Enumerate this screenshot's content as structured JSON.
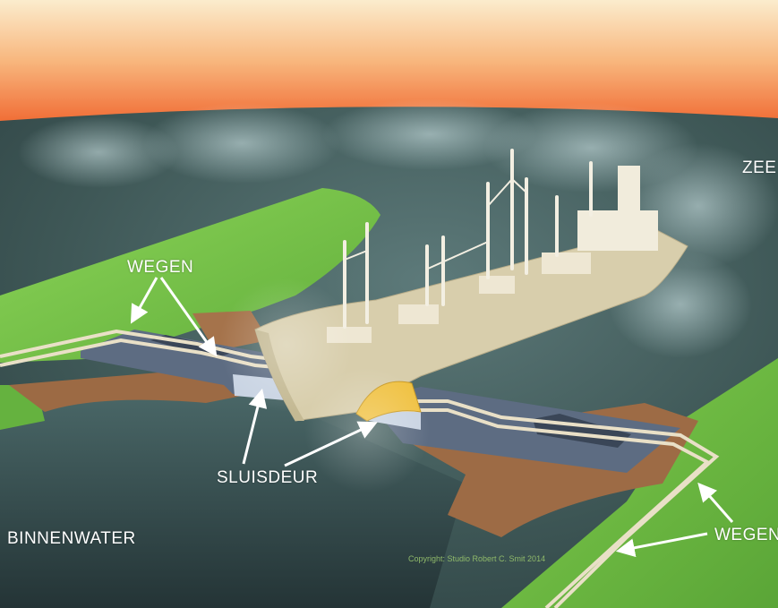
{
  "labels": {
    "zee": "ZEE",
    "wegen_top": "WEGEN",
    "sluisdeur": "SLUISDEUR",
    "binnenwater": "BINNENWATER",
    "wegen_bottom": "WEGEN"
  },
  "copyright": "Copyright: Studio Robert C. Smit 2014",
  "colors": {
    "sky_top": "#fbe6b8",
    "sky_bottom": "#f1682a",
    "water": "#3c5758",
    "grass": "#74c446",
    "quay": "#9c6a44",
    "lock_wall": "#5d6c82",
    "ship": "#d8ceac",
    "gate": "#f0c244",
    "annotation": "#ffffff"
  }
}
